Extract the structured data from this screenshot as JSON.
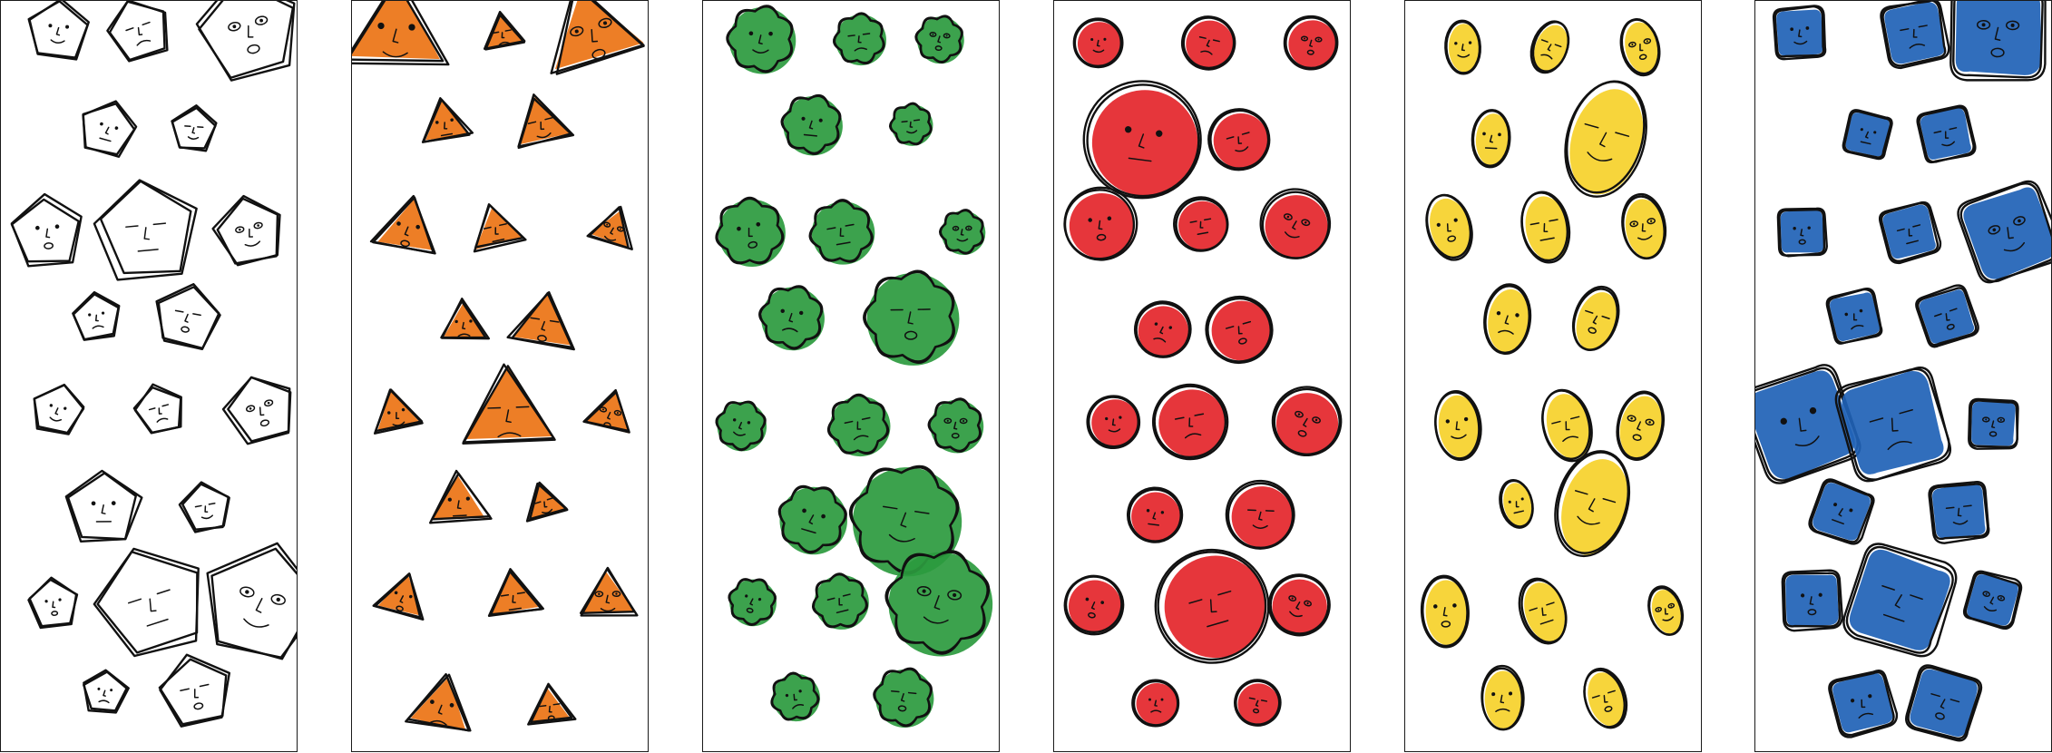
{
  "panels": [
    {
      "id": "pentagons",
      "shape": "pentagon",
      "fill": "none"
    },
    {
      "id": "triangles",
      "shape": "triangle",
      "fill": "#ec7314"
    },
    {
      "id": "clouds",
      "shape": "cloud",
      "fill": "#2b9a3e"
    },
    {
      "id": "circles",
      "shape": "circle",
      "fill": "#e4252a"
    },
    {
      "id": "ovals",
      "shape": "oval",
      "fill": "#f6d12a"
    },
    {
      "id": "squares",
      "shape": "rounded-square",
      "fill": "#1f62b6"
    }
  ]
}
